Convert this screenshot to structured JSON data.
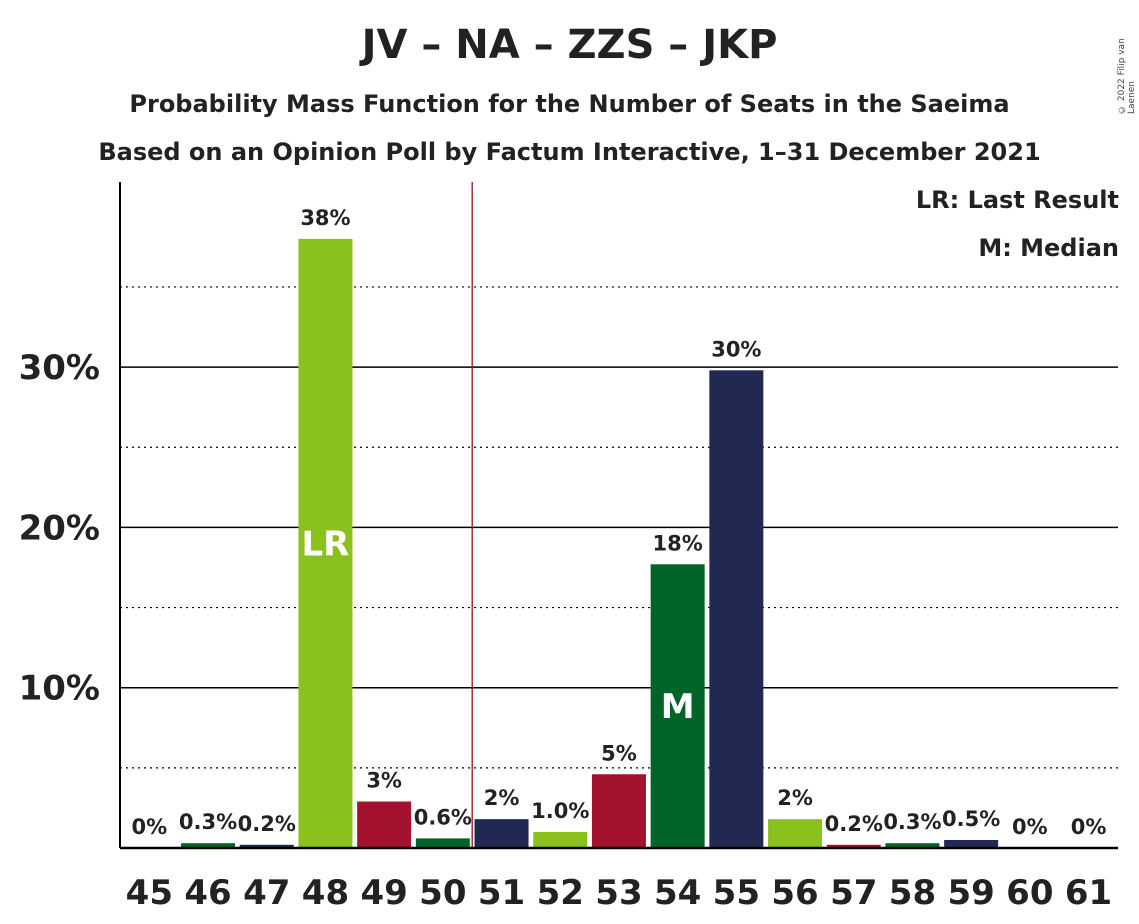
{
  "title": "JV – NA – ZZS – JKP",
  "subtitle": "Probability Mass Function for the Number of Seats in the Saeima",
  "subtitle2": "Based on an Opinion Poll by Factum Interactive, 1–31 December 2021",
  "copyright": "© 2022 Filip van Laenen",
  "legend": {
    "last_result": "LR: Last Result",
    "median": "M: Median"
  },
  "colors": {
    "green_light": "#8bc11c",
    "green_dark": "#006428",
    "crimson": "#a3122f",
    "navy": "#212851",
    "axis": "#000000"
  },
  "chart_data": {
    "type": "bar",
    "title": "JV – NA – ZZS – JKP",
    "xlabel": "",
    "ylabel": "",
    "categories": [
      "45",
      "46",
      "47",
      "48",
      "49",
      "50",
      "51",
      "52",
      "53",
      "54",
      "55",
      "56",
      "57",
      "58",
      "59",
      "60",
      "61"
    ],
    "values": [
      0,
      0.3,
      0.2,
      38,
      3,
      0.6,
      2,
      1.0,
      5,
      18,
      30,
      2,
      0.2,
      0.3,
      0.5,
      0,
      0
    ],
    "plot_values": [
      0,
      0.3,
      0.2,
      38.0,
      2.9,
      0.6,
      1.8,
      1.0,
      4.6,
      17.7,
      29.8,
      1.8,
      0.2,
      0.3,
      0.5,
      0,
      0
    ],
    "labels": [
      "0%",
      "0.3%",
      "0.2%",
      "38%",
      "3%",
      "0.6%",
      "2%",
      "1.0%",
      "5%",
      "18%",
      "30%",
      "2%",
      "0.2%",
      "0.3%",
      "0.5%",
      "0%",
      "0%"
    ],
    "bar_colors": [
      "#8bc11c",
      "#006428",
      "#212851",
      "#8bc11c",
      "#a3122f",
      "#006428",
      "#212851",
      "#8bc11c",
      "#a3122f",
      "#006428",
      "#212851",
      "#8bc11c",
      "#a3122f",
      "#006428",
      "#212851",
      "#8bc11c",
      "#a3122f"
    ],
    "yticks": [
      10,
      20,
      30
    ],
    "ytick_labels": [
      "10%",
      "20%",
      "30%"
    ],
    "minor_gridlines": [
      5,
      15,
      25,
      35
    ],
    "ylim": [
      0,
      41.5
    ],
    "majority_line_x": 50.5,
    "last_result": {
      "seat": "48",
      "marker": "LR"
    },
    "median": {
      "seat": "54",
      "marker": "M"
    },
    "legend_position": "top-right",
    "grid": true
  }
}
